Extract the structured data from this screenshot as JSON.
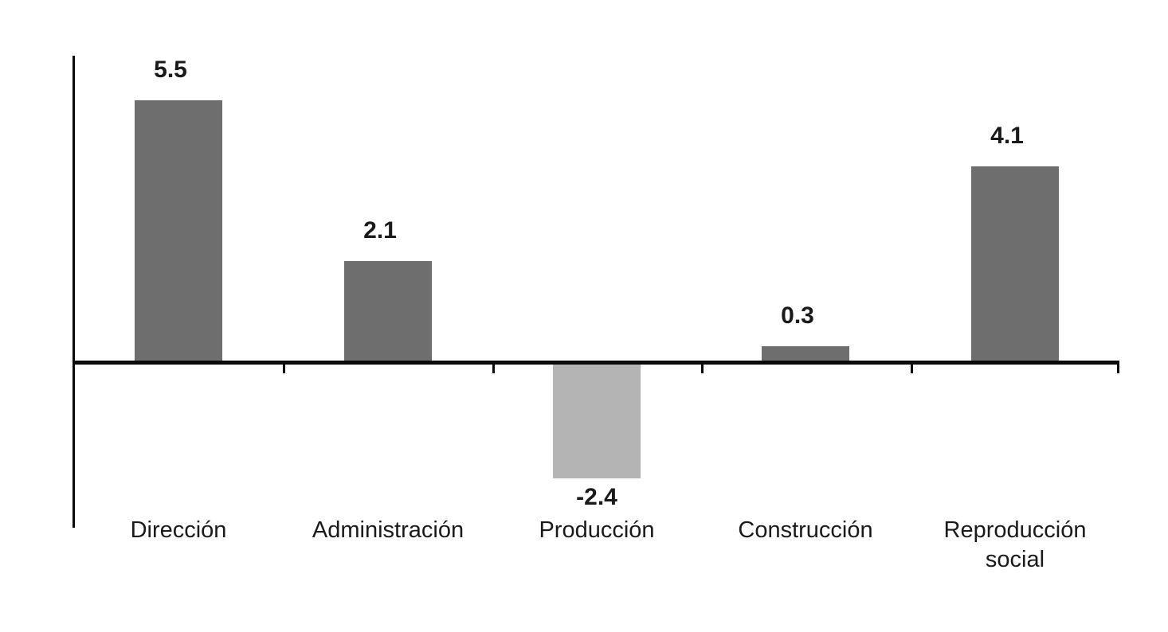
{
  "chart_data": {
    "type": "bar",
    "categories": [
      "Dirección",
      "Administración",
      "Producción",
      "Construcción",
      "Reproducción social"
    ],
    "values": [
      5.5,
      2.1,
      -2.4,
      0.3,
      4.1
    ],
    "data_labels": [
      "5.5",
      "2.1",
      "-2.4",
      "0.3",
      "4.1"
    ],
    "title": "",
    "xlabel": "",
    "ylabel": "",
    "ylim": [
      -3.5,
      6.5
    ],
    "grid": false,
    "legend": false,
    "baseline": 0,
    "colors": {
      "bar_positive": "#6e6e6e",
      "bar_negative": "#b4b4b4",
      "axis": "#0a0a0a",
      "text": "#1a1a1a",
      "background": "#ffffff"
    }
  }
}
